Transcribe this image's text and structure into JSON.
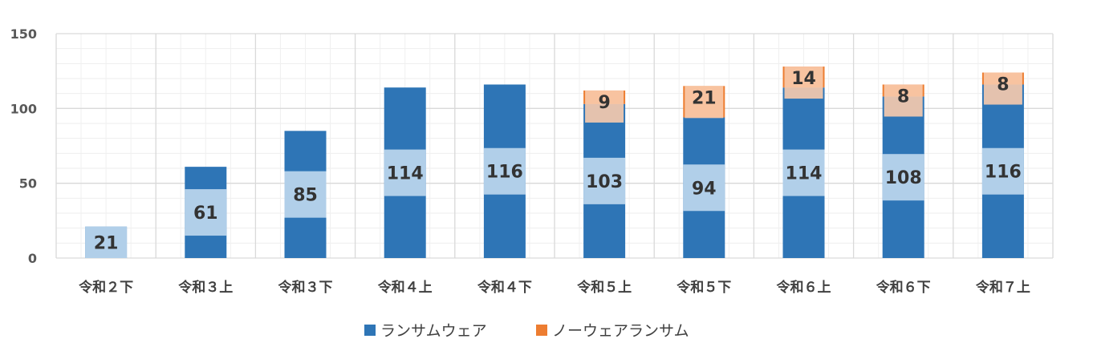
{
  "chart_data": {
    "type": "bar",
    "stacked": true,
    "categories": [
      "令和２下",
      "令和３上",
      "令和３下",
      "令和４上",
      "令和４下",
      "令和５上",
      "令和５下",
      "令和６上",
      "令和６下",
      "令和７上"
    ],
    "series": [
      {
        "name": "ランサムウェア",
        "values": [
          21,
          61,
          85,
          114,
          116,
          103,
          94,
          114,
          108,
          116
        ],
        "color": "#2E75B6"
      },
      {
        "name": "ノーウェアランサム",
        "values": [
          0,
          0,
          0,
          0,
          0,
          9,
          21,
          14,
          8,
          8
        ],
        "color": "#ED7D31"
      }
    ],
    "data_labels": {
      "ランサムウェア": [
        "21",
        "61",
        "85",
        "114",
        "116",
        "103",
        "94",
        "114",
        "108",
        "116"
      ],
      "ノーウェアランサム": [
        "",
        "",
        "",
        "",
        "",
        "9",
        "21",
        "14",
        "8",
        "8"
      ]
    },
    "ylim": [
      0,
      150
    ],
    "yticks": [
      "0",
      "50",
      "100",
      "150"
    ],
    "grid": true,
    "legend": "bottom",
    "title": "",
    "xlabel": "",
    "ylabel": ""
  }
}
